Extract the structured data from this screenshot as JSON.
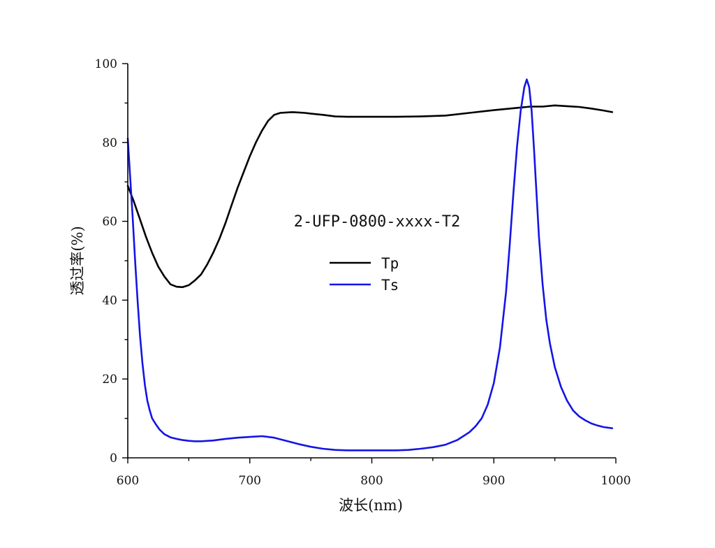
{
  "chart_data": {
    "type": "line",
    "title": "",
    "annotation": "2-UFP-0800-xxxx-T2",
    "xlabel": "波长(nm)",
    "ylabel": "透过率(%)",
    "xlim": [
      600,
      1000
    ],
    "ylim": [
      0,
      100
    ],
    "x_ticks": [
      600,
      700,
      800,
      900,
      1000
    ],
    "y_ticks": [
      0,
      20,
      40,
      60,
      80,
      100
    ],
    "grid": false,
    "legend_position": "center",
    "series": [
      {
        "name": "Tp",
        "color": "#000000",
        "x": [
          600,
          605,
          610,
          615,
          620,
          625,
          630,
          635,
          640,
          645,
          650,
          655,
          660,
          665,
          670,
          675,
          680,
          685,
          690,
          695,
          700,
          705,
          710,
          715,
          720,
          725,
          730,
          735,
          740,
          745,
          750,
          760,
          770,
          780,
          790,
          800,
          820,
          840,
          860,
          880,
          900,
          920,
          930,
          940,
          950,
          960,
          970,
          980,
          990,
          997
        ],
        "y": [
          69,
          65,
          60.5,
          56,
          52,
          48.5,
          46,
          44,
          43.4,
          43.3,
          43.8,
          45,
          46.5,
          49,
          52,
          55.5,
          59.5,
          64,
          68.5,
          72.5,
          76.5,
          80,
          83,
          85.5,
          87,
          87.5,
          87.6,
          87.7,
          87.6,
          87.5,
          87.3,
          87,
          86.6,
          86.5,
          86.5,
          86.5,
          86.5,
          86.6,
          86.8,
          87.5,
          88.2,
          88.8,
          89.1,
          89.1,
          89.4,
          89.2,
          89,
          88.6,
          88.1,
          87.7
        ]
      },
      {
        "name": "Ts",
        "color": "#1414e6",
        "x": [
          600,
          602,
          604,
          606,
          608,
          610,
          612,
          614,
          616,
          618,
          620,
          623,
          626,
          630,
          635,
          640,
          645,
          650,
          655,
          660,
          670,
          680,
          690,
          700,
          710,
          720,
          730,
          740,
          750,
          760,
          770,
          780,
          790,
          800,
          810,
          820,
          830,
          840,
          850,
          860,
          870,
          880,
          885,
          890,
          895,
          900,
          905,
          910,
          913,
          916,
          919,
          922,
          925,
          927,
          929,
          931,
          933,
          935,
          937,
          940,
          943,
          946,
          950,
          955,
          960,
          965,
          970,
          975,
          980,
          985,
          990,
          997
        ],
        "y": [
          81,
          71,
          61,
          50,
          40,
          31,
          24,
          18.5,
          14.5,
          12,
          10,
          8.5,
          7.2,
          6,
          5.2,
          4.8,
          4.5,
          4.3,
          4.2,
          4.2,
          4.4,
          4.8,
          5.1,
          5.3,
          5.5,
          5.1,
          4.3,
          3.5,
          2.8,
          2.3,
          2,
          1.9,
          1.9,
          1.9,
          1.9,
          1.9,
          2,
          2.3,
          2.7,
          3.3,
          4.5,
          6.5,
          8,
          10,
          13.5,
          19,
          28,
          42,
          54,
          67,
          79,
          88,
          94,
          96,
          94,
          88,
          78,
          67,
          56,
          44,
          35,
          29,
          23,
          18,
          14.5,
          12,
          10.5,
          9.5,
          8.7,
          8.2,
          7.8,
          7.5
        ]
      }
    ]
  }
}
